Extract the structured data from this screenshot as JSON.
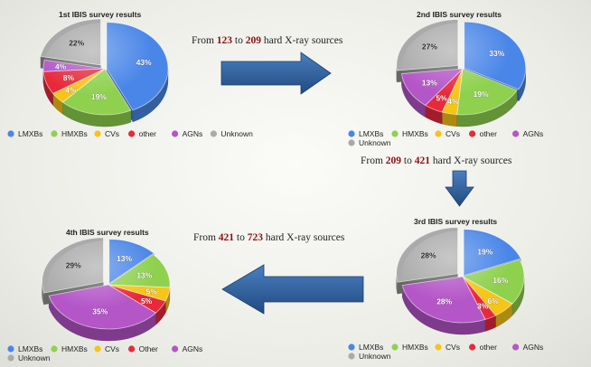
{
  "colors": {
    "LMXBs": "#4a86e8",
    "HMXBs": "#8fd14f",
    "CVs": "#f5c518",
    "other": "#e8293a",
    "AGNs": "#b455c8",
    "Unknown": "#aaaaaa",
    "arrow": "#2e5f9e",
    "highlight": "#8b1010"
  },
  "transitions": [
    {
      "prefix": "From",
      "from": "123",
      "mid": "to",
      "to": "209",
      "suffix": "hard X-ray sources"
    },
    {
      "prefix": "From",
      "from": "209",
      "mid": "to",
      "to": "421",
      "suffix": "hard X-ray sources"
    },
    {
      "prefix": "From",
      "from": "421",
      "mid": "to",
      "to": "723",
      "suffix": "hard X-ray sources"
    }
  ],
  "chart_data": [
    {
      "type": "pie",
      "title": "1st IBIS survey results",
      "slices": [
        {
          "name": "LMXBs",
          "value": 43,
          "label": "43%"
        },
        {
          "name": "HMXBs",
          "value": 19,
          "label": "19%"
        },
        {
          "name": "CVs",
          "value": 4,
          "label": "4%"
        },
        {
          "name": "other",
          "value": 8,
          "label": "8%"
        },
        {
          "name": "AGNs",
          "value": 4,
          "label": "4%"
        },
        {
          "name": "Unknown",
          "value": 22,
          "label": "22%"
        }
      ],
      "legend": [
        "LMXBs",
        "HMXBs",
        "CVs",
        "other",
        "AGNs",
        "Unknown"
      ]
    },
    {
      "type": "pie",
      "title": "2nd IBIS survey results",
      "slices": [
        {
          "name": "LMXBs",
          "value": 33,
          "label": "33%"
        },
        {
          "name": "HMXBs",
          "value": 19,
          "label": "19%"
        },
        {
          "name": "CVs",
          "value": 4,
          "label": "4%"
        },
        {
          "name": "other",
          "value": 5,
          "label": "5%"
        },
        {
          "name": "AGNs",
          "value": 13,
          "label": "13%"
        },
        {
          "name": "Unknown",
          "value": 27,
          "label": "27%"
        }
      ],
      "legend": [
        "LMXBs",
        "HMXBs",
        "CVs",
        "other",
        "AGNs",
        "Unknown"
      ]
    },
    {
      "type": "pie",
      "title": "3rd IBIS survey results",
      "slices": [
        {
          "name": "LMXBs",
          "value": 19,
          "label": "19%"
        },
        {
          "name": "HMXBs",
          "value": 16,
          "label": "16%"
        },
        {
          "name": "CVs",
          "value": 6,
          "label": "6%"
        },
        {
          "name": "other",
          "value": 3,
          "label": "3%"
        },
        {
          "name": "AGNs",
          "value": 28,
          "label": "28%"
        },
        {
          "name": "Unknown",
          "value": 28,
          "label": "28%"
        }
      ],
      "legend": [
        "LMXBs",
        "HMXBs",
        "CVs",
        "other",
        "AGNs",
        "Unknown"
      ]
    },
    {
      "type": "pie",
      "title": "4th IBIS survey results",
      "slices": [
        {
          "name": "LMXBs",
          "value": 13,
          "label": "13%"
        },
        {
          "name": "HMXBs",
          "value": 13,
          "label": "13%"
        },
        {
          "name": "CVs",
          "value": 5,
          "label": "5%"
        },
        {
          "name": "Other",
          "value": 5,
          "label": "5%"
        },
        {
          "name": "AGNs",
          "value": 35,
          "label": "35%"
        },
        {
          "name": "Unknown",
          "value": 29,
          "label": "29%"
        }
      ],
      "legend": [
        "LMXBs",
        "HMXBs",
        "CVs",
        "Other",
        "AGNs",
        "Unknown"
      ]
    }
  ]
}
